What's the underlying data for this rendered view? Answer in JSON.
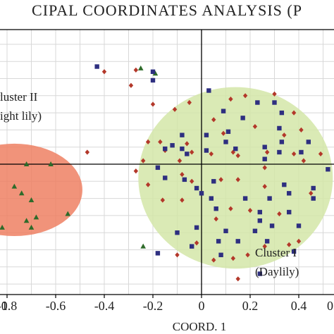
{
  "chart_data": {
    "type": "scatter",
    "title": "CIPAL COORDINATES ANALYSIS (P",
    "xlabel": "COORD. 1",
    "ylabel": "",
    "xlim": [
      -1.02,
      0.6
    ],
    "ylim": [
      -0.85,
      0.72
    ],
    "xticks": [
      {
        "value": -1.0,
        "label": "1"
      },
      {
        "value": -0.8,
        "label": "-0.8"
      },
      {
        "value": -0.6,
        "label": "-0.6"
      },
      {
        "value": -0.4,
        "label": "-0.4"
      },
      {
        "value": -0.2,
        "label": "-0.2"
      },
      {
        "value": 0.0,
        "label": "0"
      },
      {
        "value": 0.2,
        "label": "0.2"
      },
      {
        "value": 0.4,
        "label": "0.4"
      },
      {
        "value": 0.6,
        "label": "0"
      }
    ],
    "grid": true,
    "legend": "none",
    "colors": {
      "triangle": "#2e6b2a",
      "diamond": "#b3382a",
      "square": "#2e2f80",
      "cluster1_fill": "#d4e6a8",
      "cluster2_fill": "#ef8063",
      "grid": "#d8d8d8",
      "axis": "#000000"
    },
    "clusters": [
      {
        "label_lines": [
          "Cluster I",
          "(Daylily)"
        ],
        "center": [
          0.14,
          -0.08
        ],
        "rx": 0.4,
        "ry": 0.53,
        "fill": "#d4e6a8"
      },
      {
        "label_lines": [
          "luster II",
          "ight lily)"
        ],
        "center": [
          -0.77,
          -0.15
        ],
        "rx": 0.28,
        "ry": 0.27,
        "fill": "#ef8063"
      }
    ],
    "series": [
      {
        "marker": "triangle",
        "color": "#2e6b2a",
        "points": [
          [
            -0.97,
            0.1
          ],
          [
            -0.93,
            -0.05
          ],
          [
            -0.72,
            0.0
          ],
          [
            -0.62,
            0.0
          ],
          [
            -0.85,
            -0.14
          ],
          [
            -0.77,
            -0.13
          ],
          [
            -0.74,
            -0.17
          ],
          [
            -0.7,
            -0.21
          ],
          [
            -0.95,
            -0.27
          ],
          [
            -0.86,
            -0.29
          ],
          [
            -0.72,
            -0.33
          ],
          [
            -0.68,
            -0.31
          ],
          [
            -0.55,
            -0.29
          ],
          [
            -0.82,
            -0.37
          ],
          [
            -0.7,
            -0.37
          ],
          [
            -0.25,
            0.56
          ],
          [
            -0.19,
            0.53
          ],
          [
            -0.24,
            -0.48
          ]
        ]
      },
      {
        "marker": "diamond",
        "color": "#b3382a",
        "points": [
          [
            -0.27,
            0.55
          ],
          [
            -0.29,
            0.46
          ],
          [
            -0.4,
            0.54
          ],
          [
            -0.47,
            0.07
          ],
          [
            -0.2,
            0.35
          ],
          [
            -0.05,
            0.36
          ],
          [
            -0.11,
            0.32
          ],
          [
            0.05,
            0.26
          ],
          [
            0.12,
            0.38
          ],
          [
            0.18,
            0.4
          ],
          [
            0.3,
            0.41
          ],
          [
            0.38,
            0.3
          ],
          [
            0.41,
            0.2
          ],
          [
            0.34,
            0.17
          ],
          [
            0.22,
            0.22
          ],
          [
            -0.17,
            0.13
          ],
          [
            -0.06,
            0.12
          ],
          [
            0.04,
            0.06
          ],
          [
            0.09,
            0.18
          ],
          [
            0.27,
            0.07
          ],
          [
            0.38,
            0.06
          ],
          [
            0.49,
            0.06
          ],
          [
            0.42,
            0.02
          ],
          [
            -0.22,
            0.13
          ],
          [
            -0.15,
            0.08
          ],
          [
            -0.24,
            0.02
          ],
          [
            -0.27,
            -0.04
          ],
          [
            -0.04,
            0.07
          ],
          [
            -0.09,
            0.02
          ],
          [
            0.13,
            0.07
          ],
          [
            0.15,
            0.05
          ],
          [
            0.26,
            -0.02
          ],
          [
            -0.22,
            -0.12
          ],
          [
            -0.08,
            -0.06
          ],
          [
            -0.04,
            -0.1
          ],
          [
            0.08,
            -0.09
          ],
          [
            0.15,
            -0.09
          ],
          [
            0.26,
            -0.13
          ],
          [
            0.45,
            -0.17
          ],
          [
            -0.16,
            -0.21
          ],
          [
            -0.08,
            -0.21
          ],
          [
            0.12,
            -0.26
          ],
          [
            0.2,
            -0.27
          ],
          [
            0.32,
            -0.29
          ],
          [
            0.06,
            -0.32
          ],
          [
            -0.02,
            -0.46
          ],
          [
            -0.1,
            -0.53
          ],
          [
            0.05,
            -0.56
          ],
          [
            0.13,
            -0.55
          ],
          [
            0.19,
            -0.53
          ],
          [
            0.26,
            -0.48
          ],
          [
            0.36,
            -0.47
          ],
          [
            0.4,
            -0.45
          ],
          [
            0.15,
            -0.67
          ]
        ]
      },
      {
        "marker": "square",
        "color": "#2e2f80",
        "points": [
          [
            -0.43,
            0.57
          ],
          [
            -0.2,
            0.54
          ],
          [
            -0.2,
            0.49
          ],
          [
            0.03,
            0.43
          ],
          [
            0.23,
            0.36
          ],
          [
            0.3,
            0.36
          ],
          [
            0.33,
            0.3
          ],
          [
            0.09,
            0.31
          ],
          [
            0.17,
            0.27
          ],
          [
            0.11,
            0.19
          ],
          [
            0.1,
            0.13
          ],
          [
            0.32,
            0.21
          ],
          [
            0.44,
            0.13
          ],
          [
            -0.08,
            0.17
          ],
          [
            0.02,
            0.17
          ],
          [
            -0.15,
            0.09
          ],
          [
            -0.08,
            0.09
          ],
          [
            -0.12,
            0.11
          ],
          [
            -0.06,
            0.06
          ],
          [
            0.02,
            0.08
          ],
          [
            0.14,
            0.09
          ],
          [
            0.26,
            0.1
          ],
          [
            0.33,
            0.13
          ],
          [
            0.41,
            0.07
          ],
          [
            0.32,
            0.07
          ],
          [
            0.26,
            0.03
          ],
          [
            0.52,
            -0.03
          ],
          [
            -0.18,
            -0.02
          ],
          [
            -0.07,
            -0.09
          ],
          [
            0.05,
            -0.1
          ],
          [
            -0.02,
            -0.14
          ],
          [
            0.0,
            -0.17
          ],
          [
            0.04,
            -0.2
          ],
          [
            -0.15,
            -0.08
          ],
          [
            0.18,
            -0.2
          ],
          [
            0.28,
            -0.2
          ],
          [
            0.36,
            -0.17
          ],
          [
            0.34,
            -0.12
          ],
          [
            0.46,
            -0.14
          ],
          [
            0.46,
            -0.2
          ],
          [
            0.06,
            -0.26
          ],
          [
            0.24,
            -0.28
          ],
          [
            0.36,
            -0.28
          ],
          [
            0.24,
            -0.33
          ],
          [
            0.4,
            -0.36
          ],
          [
            0.1,
            -0.39
          ],
          [
            0.29,
            -0.36
          ],
          [
            -0.1,
            -0.4
          ],
          [
            -0.02,
            -0.37
          ],
          [
            0.07,
            -0.45
          ],
          [
            0.22,
            -0.39
          ],
          [
            0.27,
            -0.45
          ],
          [
            -0.04,
            -0.48
          ],
          [
            -0.18,
            -0.52
          ],
          [
            0.15,
            -0.45
          ],
          [
            0.38,
            -0.51
          ],
          [
            0.08,
            -0.53
          ],
          [
            0.24,
            -0.64
          ]
        ]
      }
    ]
  }
}
